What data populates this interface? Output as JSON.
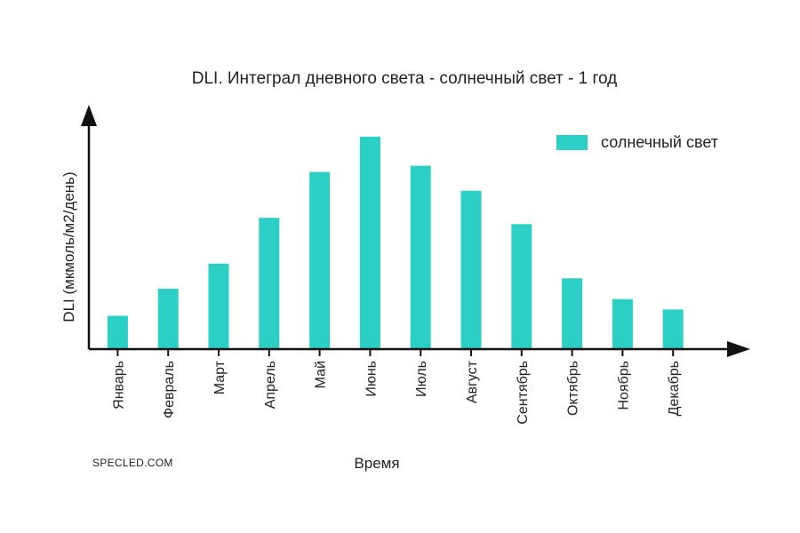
{
  "chart_data": {
    "type": "bar",
    "title": "DLI. Интеграл дневного света - солнечный свет - 1 год",
    "xlabel": "Время",
    "ylabel": "DLI (мкмоль/м2/день)",
    "categories": [
      "Январь",
      "Февраль",
      "Март",
      "Апрель",
      "Май",
      "Июнь",
      "Июль",
      "Август",
      "Сентябрь",
      "Октябрь",
      "Ноябрь",
      "Декабрь"
    ],
    "series": [
      {
        "name": "солнечный свет",
        "values": [
          16,
          29,
          41,
          63,
          85,
          102,
          88,
          76,
          60,
          34,
          24,
          19
        ]
      }
    ],
    "ylim": [
      0,
      110
    ],
    "grid": false,
    "legend": "top-right",
    "colors": {
      "bar": "#2bcfc4",
      "axis": "#111111"
    }
  },
  "watermark": "SPECLED.COM"
}
